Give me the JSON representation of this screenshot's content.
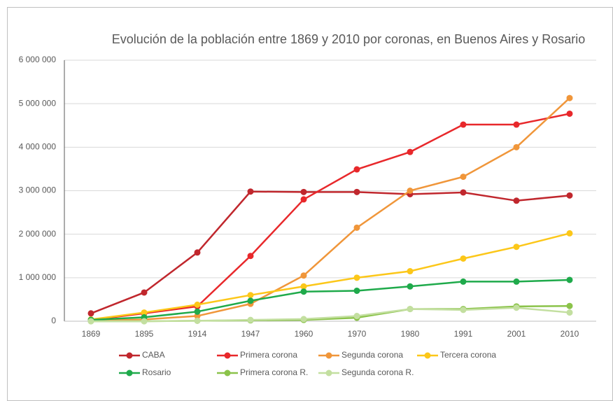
{
  "chart_data": {
    "type": "line",
    "title": "Evolución de la población entre 1869 y 2010 por coronas, en Buenos Aires y Rosario",
    "categories": [
      "1869",
      "1895",
      "1914",
      "1947",
      "1960",
      "1970",
      "1980",
      "1991",
      "2001",
      "2010"
    ],
    "series": [
      {
        "name": "CABA",
        "color": "#c0272d",
        "values": [
          180000,
          660000,
          1580000,
          2980000,
          2970000,
          2970000,
          2920000,
          2960000,
          2770000,
          2890000
        ]
      },
      {
        "name": "Primera corona",
        "color": "#e8282b",
        "values": [
          30000,
          180000,
          340000,
          1500000,
          2800000,
          3490000,
          3890000,
          4520000,
          4520000,
          4770000
        ]
      },
      {
        "name": "Segunda corona",
        "color": "#f0963a",
        "values": [
          10000,
          40000,
          120000,
          400000,
          1050000,
          2150000,
          3000000,
          3320000,
          4000000,
          5130000
        ]
      },
      {
        "name": "Tercera corona",
        "color": "#fcc719",
        "values": [
          40000,
          200000,
          380000,
          600000,
          800000,
          1000000,
          1150000,
          1440000,
          1710000,
          2020000
        ]
      },
      {
        "name": "Rosario",
        "color": "#1faa4b",
        "values": [
          30000,
          90000,
          220000,
          470000,
          680000,
          700000,
          800000,
          910000,
          910000,
          950000
        ]
      },
      {
        "name": "Primera corona R.",
        "color": "#8bc34a",
        "values": [
          0,
          0,
          10000,
          20000,
          30000,
          80000,
          280000,
          280000,
          340000,
          350000
        ]
      },
      {
        "name": "Segunda corona R.",
        "color": "#c3dfa0",
        "values": [
          0,
          0,
          10000,
          30000,
          50000,
          120000,
          280000,
          260000,
          310000,
          200000
        ]
      }
    ],
    "ylim": [
      0,
      6000000
    ],
    "yticks": [
      0,
      {
        "value": 1000000,
        "label": "1 000 000"
      },
      {
        "value": 2000000,
        "label": "2 000 000"
      },
      {
        "value": 3000000,
        "label": "3 000 000"
      },
      {
        "value": 4000000,
        "label": "4 000 000"
      },
      {
        "value": 5000000,
        "label": "5 000 000"
      },
      {
        "value": 6000000,
        "label": "6 000 000"
      }
    ],
    "grid": true,
    "legend": "bottom"
  }
}
